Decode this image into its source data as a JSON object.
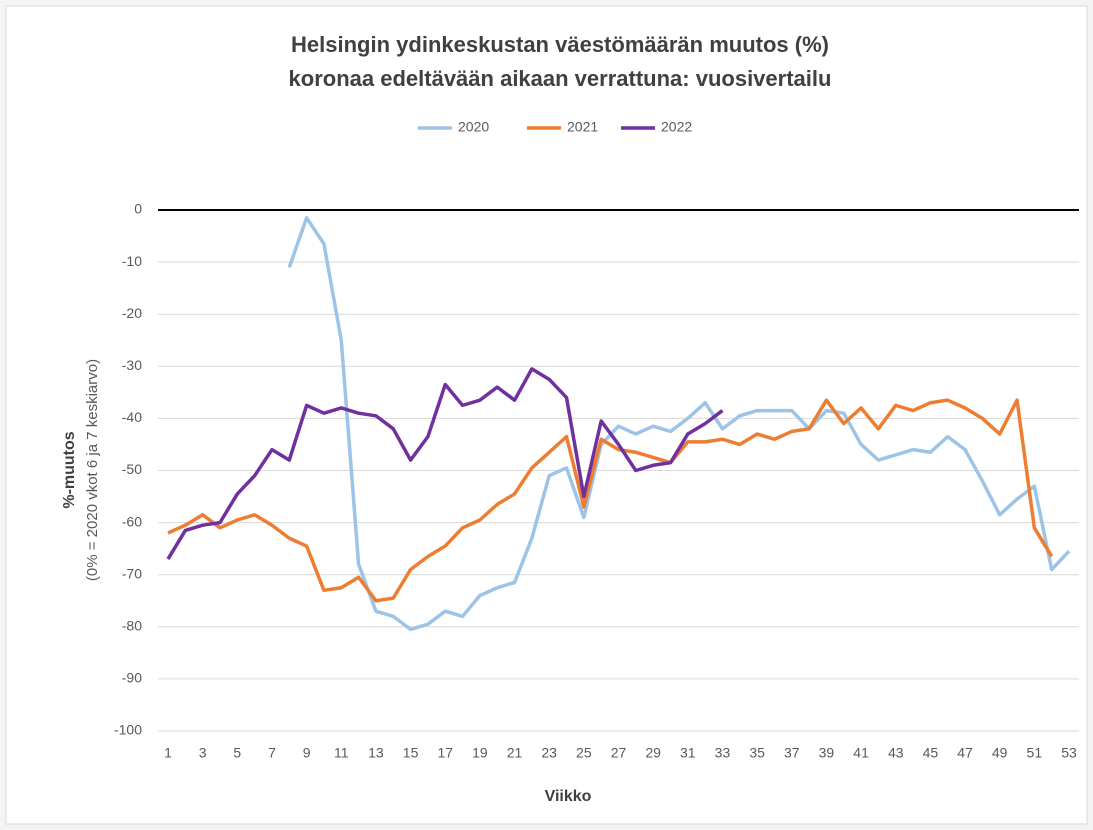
{
  "chart_data": {
    "type": "line",
    "title": [
      "Helsingin ydinkeskustan väestömäärän muutos (%)",
      "koronaa edeltävään aikaan verrattuna: vuosivertailu"
    ],
    "x_label": "Viikko",
    "y_label": [
      "%-muutos",
      "(0% = 2020  vkot 6 ja 7 keskiarvo)"
    ],
    "x": [
      1,
      2,
      3,
      4,
      5,
      6,
      7,
      8,
      9,
      10,
      11,
      12,
      13,
      14,
      15,
      16,
      17,
      18,
      19,
      20,
      21,
      22,
      23,
      24,
      25,
      26,
      27,
      28,
      29,
      30,
      31,
      32,
      33,
      34,
      35,
      36,
      37,
      38,
      39,
      40,
      41,
      42,
      43,
      44,
      45,
      46,
      47,
      48,
      49,
      50,
      51,
      52,
      53
    ],
    "xlim": [
      1,
      53
    ],
    "xticks": [
      1,
      3,
      5,
      7,
      9,
      11,
      13,
      15,
      17,
      19,
      21,
      23,
      25,
      27,
      29,
      31,
      33,
      35,
      37,
      39,
      41,
      43,
      45,
      47,
      49,
      51,
      53
    ],
    "ylim": [
      -100,
      0
    ],
    "yticks": [
      0,
      -10,
      -20,
      -30,
      -40,
      -50,
      -60,
      -70,
      -80,
      -90,
      -100
    ],
    "grid": true,
    "legend": "top",
    "series": [
      {
        "name": "2020",
        "color": "#9dc3e6",
        "values": [
          null,
          null,
          null,
          null,
          null,
          null,
          null,
          -11,
          -1.5,
          -6.5,
          -25,
          -68,
          -77,
          -78,
          -80.5,
          -79.5,
          -77,
          -78,
          -74,
          -72.5,
          -71.5,
          -63,
          -51,
          -49.5,
          -59,
          -45,
          -41.5,
          -43,
          -41.5,
          -42.5,
          -40,
          -37,
          -42,
          -39.5,
          -38.5,
          -38.5,
          -38.5,
          -42,
          -38.5,
          -39,
          -45,
          -48,
          -47,
          -46,
          -46.5,
          -43.5,
          -46,
          -52,
          -58.5,
          -55.5,
          -53,
          -69,
          -65.5
        ]
      },
      {
        "name": "2021",
        "color": "#ed7d31",
        "values": [
          -62,
          -60.5,
          -58.5,
          -61,
          -59.5,
          -58.5,
          -60.5,
          -63,
          -64.5,
          -73,
          -72.5,
          -70.5,
          -75,
          -74.5,
          -69,
          -66.5,
          -64.5,
          -61,
          -59.5,
          -56.5,
          -54.5,
          -49.5,
          -46.5,
          -43.5,
          -57,
          -44,
          -46,
          -46.5,
          -47.5,
          -48.5,
          -44.5,
          -44.5,
          -44,
          -45,
          -43,
          -44,
          -42.5,
          -42,
          -36.5,
          -41,
          -38,
          -42,
          -37.5,
          -38.5,
          -37,
          -36.5,
          -38,
          -40,
          -43,
          -36.5,
          -61,
          -66.5,
          null
        ]
      },
      {
        "name": "2022",
        "color": "#7030a0",
        "values": [
          -67,
          -61.5,
          -60.5,
          -60,
          -54.5,
          -51,
          -46,
          -48,
          -37.5,
          -39,
          -38,
          -39,
          -39.5,
          -42,
          -48,
          -43.5,
          -33.5,
          -37.5,
          -36.5,
          -34,
          -36.5,
          -30.5,
          -32.5,
          -36,
          -55,
          -40.5,
          -45,
          -50,
          -49,
          -48.5,
          -43,
          -41,
          -38.5,
          null,
          null,
          null,
          null,
          null,
          null,
          null,
          null,
          null,
          null,
          null,
          null,
          null,
          null,
          null,
          null,
          null,
          null,
          null,
          null
        ]
      }
    ]
  }
}
